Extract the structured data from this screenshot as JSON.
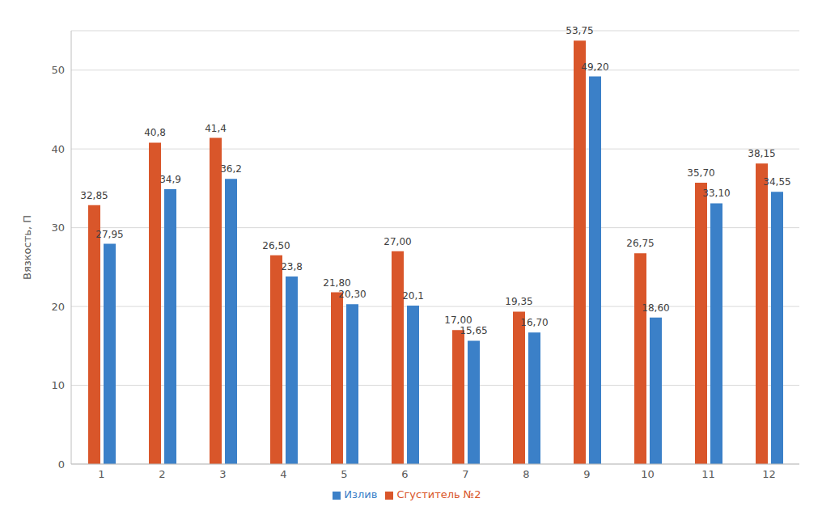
{
  "chart_data": {
    "type": "bar",
    "y_label": "Вязкость, П",
    "categories": [
      "1",
      "2",
      "3",
      "4",
      "5",
      "6",
      "7",
      "8",
      "9",
      "10",
      "11",
      "12"
    ],
    "series": [
      {
        "name": "Сгуститель №2",
        "color": "#d9562a",
        "values": [
          32.85,
          40.8,
          41.4,
          26.5,
          21.8,
          27.0,
          17.0,
          19.35,
          53.75,
          26.75,
          35.7,
          38.15
        ],
        "value_labels": [
          "32,85",
          "40,8",
          "41,4",
          "26,50",
          "21,80",
          "27,00",
          "17,00",
          "19,35",
          "53,75",
          "26,75",
          "35,70",
          "38,15"
        ]
      },
      {
        "name": "Излив",
        "color": "#3b80c8",
        "values": [
          27.95,
          34.9,
          36.2,
          23.8,
          20.3,
          20.1,
          15.65,
          16.7,
          49.2,
          18.6,
          33.1,
          34.55
        ],
        "value_labels": [
          "27,95",
          "34,9",
          "36,2",
          "23,8",
          "20,30",
          "20,1",
          "15,65",
          "16,70",
          "49,20",
          "18,60",
          "33,10",
          "34,55"
        ]
      }
    ],
    "ylim": [
      0,
      55
    ],
    "yticks": [
      0,
      10,
      20,
      30,
      40,
      50
    ],
    "grid": true,
    "data_labels": true,
    "legend": "bottom"
  }
}
